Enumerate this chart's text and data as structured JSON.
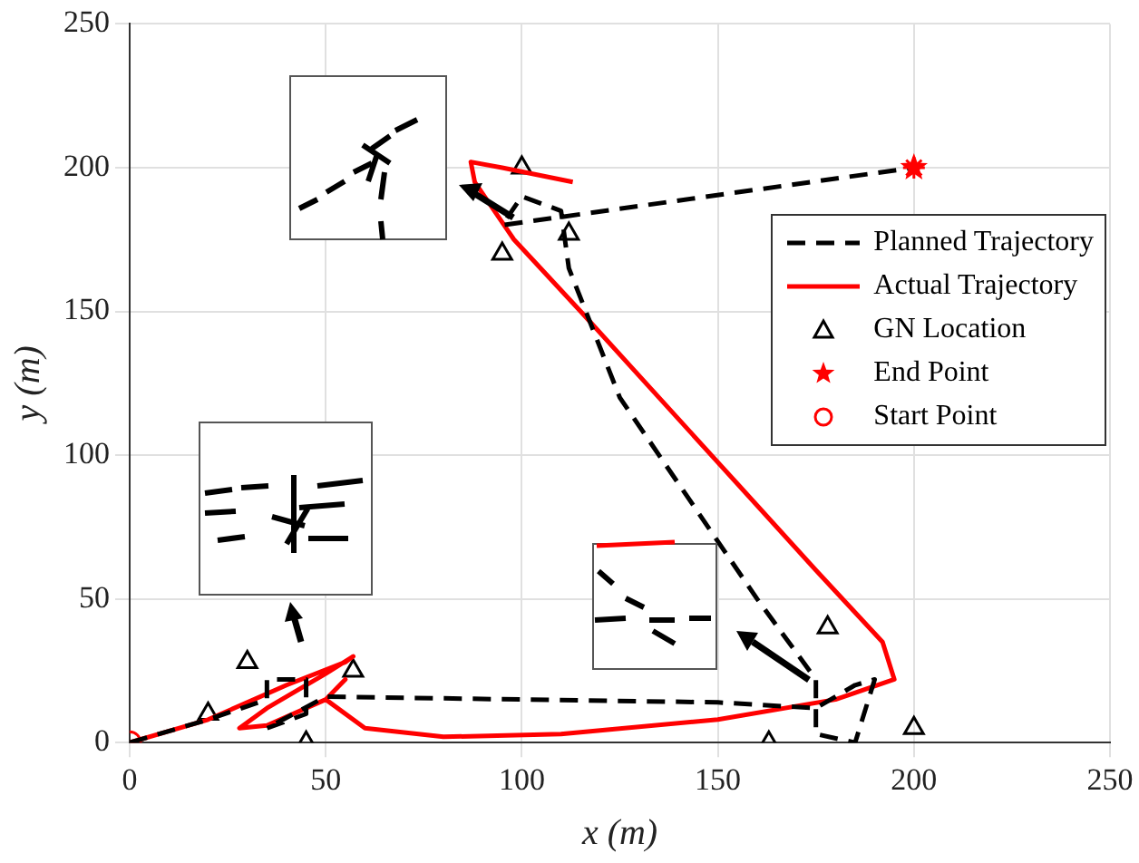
{
  "chart_data": {
    "type": "line",
    "xlabel": "x (m)",
    "ylabel": "y (m)",
    "xlim": [
      0,
      250
    ],
    "ylim": [
      0,
      250
    ],
    "xticks": [
      0,
      50,
      100,
      150,
      200,
      250
    ],
    "yticks": [
      0,
      50,
      100,
      150,
      200,
      250
    ],
    "grid": true,
    "legend": "top right",
    "series": [
      {
        "name": "Planned Trajectory",
        "type": "line",
        "color": "#000000",
        "line_style": "dashed",
        "marker": "none",
        "x": [
          0,
          20,
          35,
          35,
          45,
          45,
          35,
          50,
          100,
          150,
          175,
          185,
          190,
          185,
          175,
          175,
          160,
          140,
          125,
          112,
          110,
          100,
          95,
          200
        ],
        "values": [
          0,
          8,
          15,
          22,
          22,
          10,
          5,
          16,
          15,
          14,
          12,
          20,
          22,
          0,
          3,
          22,
          50,
          90,
          120,
          165,
          185,
          190,
          180,
          200
        ]
      },
      {
        "name": "Actual Trajectory",
        "type": "line",
        "color": "#ff0000",
        "line_style": "solid",
        "marker": "none",
        "x": [
          0,
          20,
          40,
          55,
          57,
          50,
          35,
          28,
          35,
          50,
          55,
          50,
          60,
          80,
          110,
          150,
          180,
          195,
          192,
          175,
          155,
          135,
          115,
          98,
          88,
          87,
          95,
          113
        ],
        "values": [
          0,
          8,
          20,
          28,
          30,
          24,
          12,
          5,
          6,
          15,
          22,
          15,
          5,
          2,
          3,
          8,
          15,
          22,
          35,
          60,
          90,
          120,
          150,
          175,
          195,
          202,
          200,
          195
        ]
      },
      {
        "name": "GN Location",
        "type": "scatter",
        "color": "#000000",
        "marker": "triangle",
        "x": [
          20,
          30,
          45,
          57,
          100,
          95,
          112,
          163,
          178,
          200
        ],
        "values": [
          10,
          28,
          0,
          25,
          200,
          170,
          177,
          0,
          40,
          5
        ]
      },
      {
        "name": "End Point",
        "type": "scatter",
        "color": "#ff0000",
        "marker": "star",
        "x": [
          200
        ],
        "values": [
          200
        ]
      },
      {
        "name": "Start Point",
        "type": "scatter",
        "color": "#ff0000",
        "marker": "circle",
        "x": [
          0
        ],
        "values": [
          0
        ]
      }
    ]
  }
}
